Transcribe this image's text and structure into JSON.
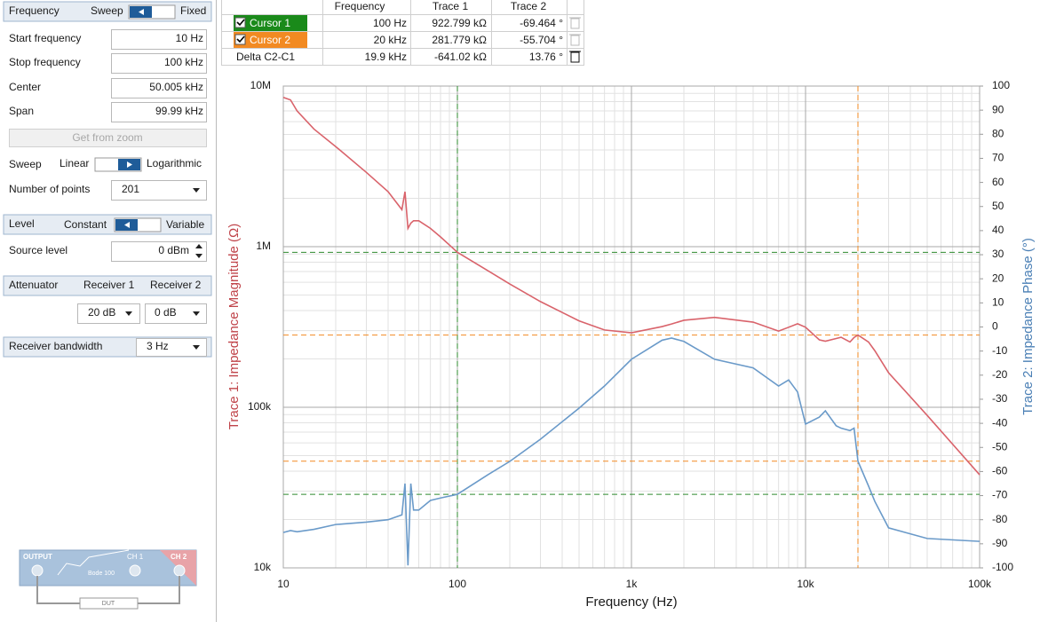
{
  "panel": {
    "frequency": {
      "title": "Frequency",
      "left": "Sweep",
      "right": "Fixed"
    },
    "fields": [
      {
        "label": "Start frequency",
        "value": "10 Hz"
      },
      {
        "label": "Stop frequency",
        "value": "100 kHz"
      },
      {
        "label": "Center",
        "value": "50.005 kHz"
      },
      {
        "label": "Span",
        "value": "99.99 kHz"
      }
    ],
    "button": "Get from zoom",
    "sweep": {
      "label": "Sweep",
      "left": "Linear",
      "right": "Logarithmic"
    },
    "points": {
      "label": "Number of points",
      "value": "201"
    },
    "level": {
      "title": "Level",
      "left": "Constant",
      "right": "Variable"
    },
    "source": {
      "label": "Source level",
      "value": "0 dBm"
    },
    "attenuator": {
      "title": "Attenuator",
      "r1": "Receiver 1",
      "r2": "Receiver 2",
      "v1": "20 dB",
      "v2": "0 dB"
    },
    "bandwidth": {
      "label": "Receiver bandwidth",
      "value": "3 Hz"
    },
    "device": {
      "output": "OUTPUT",
      "ch1": "CH 1",
      "ch2": "CH 2",
      "model": "Bode 100",
      "dut": "DUT"
    }
  },
  "cursor_table": {
    "header": [
      "Frequency",
      "Trace 1",
      "Trace 2"
    ],
    "rows": [
      [
        "Cursor 1",
        "100 Hz",
        "922.799 kΩ",
        "-69.464 °"
      ],
      [
        "Cursor 2",
        "20 kHz",
        "281.779 kΩ",
        "-55.704 °"
      ],
      [
        "Delta C2-C1",
        "19.9 kHz",
        "-641.02 kΩ",
        "13.76 °"
      ]
    ]
  },
  "chart_data": {
    "type": "line",
    "xlabel": "Frequency (Hz)",
    "ylabel": "Trace 1: Impedance Magnitude (Ω)",
    "y2label": "Trace 2: Impedance Phase (°)",
    "xlog": true,
    "ylog": true,
    "grid": true,
    "xlim": [
      10,
      100000
    ],
    "xticks": [
      10,
      100,
      {
        "value": 1000,
        "label": "1k"
      },
      {
        "value": 10000,
        "label": "10k"
      },
      {
        "value": 100000,
        "label": "100k"
      }
    ],
    "ylim": [
      10000,
      10000000
    ],
    "yticks": [
      {
        "value": 10000,
        "label": "10k"
      },
      {
        "value": 100000,
        "label": "100k"
      },
      {
        "value": 1000000,
        "label": "1M"
      },
      {
        "value": 10000000,
        "label": "10M"
      }
    ],
    "y2lim": [
      -100,
      100
    ],
    "y2ticks": [
      -100,
      -90,
      -80,
      -70,
      -60,
      -50,
      -40,
      -30,
      -20,
      -10,
      0,
      10,
      20,
      30,
      40,
      50,
      60,
      70,
      80,
      90,
      100
    ],
    "x": [
      10,
      11,
      12,
      15,
      20,
      30,
      40,
      48,
      50,
      52,
      54,
      56,
      60,
      70,
      80,
      100,
      150,
      200,
      300,
      500,
      700,
      1000,
      1500,
      1700,
      2000,
      3000,
      5000,
      7000,
      8000,
      9000,
      10000,
      12000,
      13000,
      15000,
      16000,
      18000,
      19000,
      20000,
      23000,
      25000,
      30000,
      50000,
      100000
    ],
    "series": [
      {
        "color": "#d9636b",
        "values": [
          8500000,
          8200000,
          7000000,
          5400000,
          4200000,
          2900000,
          2200000,
          1700000,
          2200000,
          1300000,
          1400000,
          1450000,
          1450000,
          1300000,
          1150000,
          922799,
          708000,
          586000,
          455000,
          345000,
          303000,
          291000,
          318000,
          330000,
          348000,
          363000,
          339000,
          298000,
          315000,
          331000,
          315000,
          263000,
          258000,
          268000,
          273000,
          255000,
          272000,
          281779,
          255000,
          225000,
          164000,
          89000,
          38000
        ]
      },
      {
        "color": "#6a9ac9",
        "axis": "y2",
        "values": [
          -85.3,
          -84.5,
          -85,
          -84,
          -82,
          -81,
          -80,
          -78,
          -65,
          -99,
          -65,
          -76,
          -76,
          -72,
          -71,
          -69.464,
          -61.3,
          -55.8,
          -46.6,
          -33.7,
          -24.5,
          -13.4,
          -5.5,
          -4.6,
          -6,
          -13.4,
          -17,
          -24.5,
          -22,
          -27,
          -40.3,
          -37.4,
          -34.8,
          -41,
          -42,
          -43,
          -42,
          -55.704,
          -66,
          -72.4,
          -83.4,
          -87.8,
          -89
        ]
      }
    ],
    "cursors": [
      {
        "color": "#2e8b2e",
        "x": 100,
        "y": 922799,
        "y2": -69.464
      },
      {
        "color": "#f28a22",
        "x": 20000,
        "y": 281779,
        "y2": -55.704
      }
    ]
  }
}
